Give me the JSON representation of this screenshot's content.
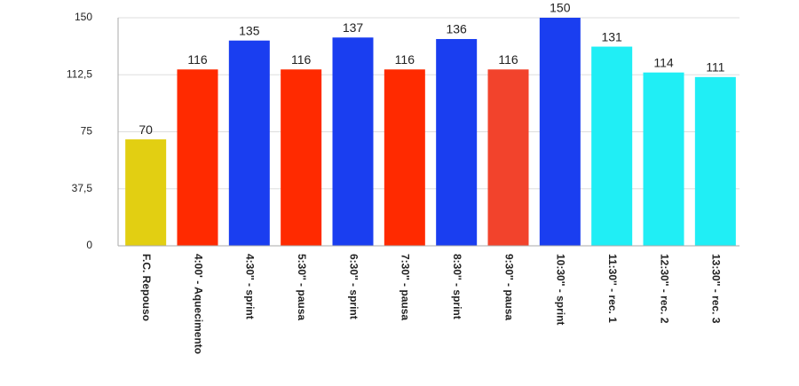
{
  "chart_data": {
    "type": "bar",
    "categories": [
      "F.C. Repouso",
      "4:00' - Aquecimento",
      "4:30'' - sprint",
      "5:30'' - pausa",
      "6:30'' - sprint",
      "7:30'' - pausa",
      "8:30'' - sprint",
      "9:30'' - pausa",
      "10:30'' - sprint",
      "11:30'' - rec. 1",
      "12:30'' - rec. 2",
      "13:30'' - rec. 3"
    ],
    "values": [
      70,
      116,
      135,
      116,
      137,
      116,
      136,
      116,
      150,
      131,
      114,
      111
    ],
    "colors": [
      "#e2cf12",
      "#ff2a00",
      "#1a3ef0",
      "#ff2a00",
      "#1a3ef0",
      "#ff2a00",
      "#1a3ef0",
      "#f2432c",
      "#1a3ef0",
      "#20eef5",
      "#20eef5",
      "#20eef5"
    ],
    "ylim": [
      0,
      150
    ],
    "yticks": [
      0,
      {
        "value": 37.5,
        "label": "37,5"
      },
      75,
      {
        "value": 112.5,
        "label": "112,5"
      },
      150
    ],
    "grid": true
  }
}
